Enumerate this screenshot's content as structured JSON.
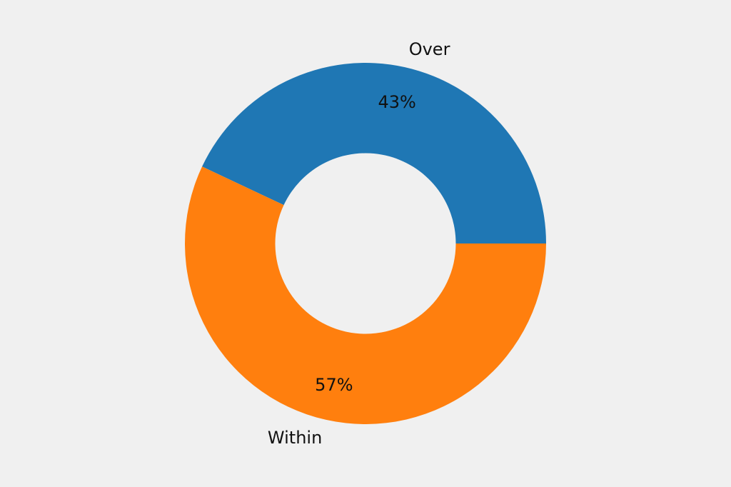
{
  "chart_data": {
    "type": "pie",
    "variant": "donut",
    "slices": [
      {
        "label": "Over",
        "value": 43,
        "pct_label": "43%",
        "color": "#1f77b4"
      },
      {
        "label": "Within",
        "value": 57,
        "pct_label": "57%",
        "color": "#ff7f0e"
      }
    ],
    "start_angle_deg": 0,
    "direction": "counterclockwise",
    "inner_radius_ratio": 0.5,
    "label_distance_ratio": 1.1,
    "pct_distance_ratio": 0.8,
    "legend": "none",
    "background_color": "#f0f0f0",
    "text_color": "#111111"
  }
}
